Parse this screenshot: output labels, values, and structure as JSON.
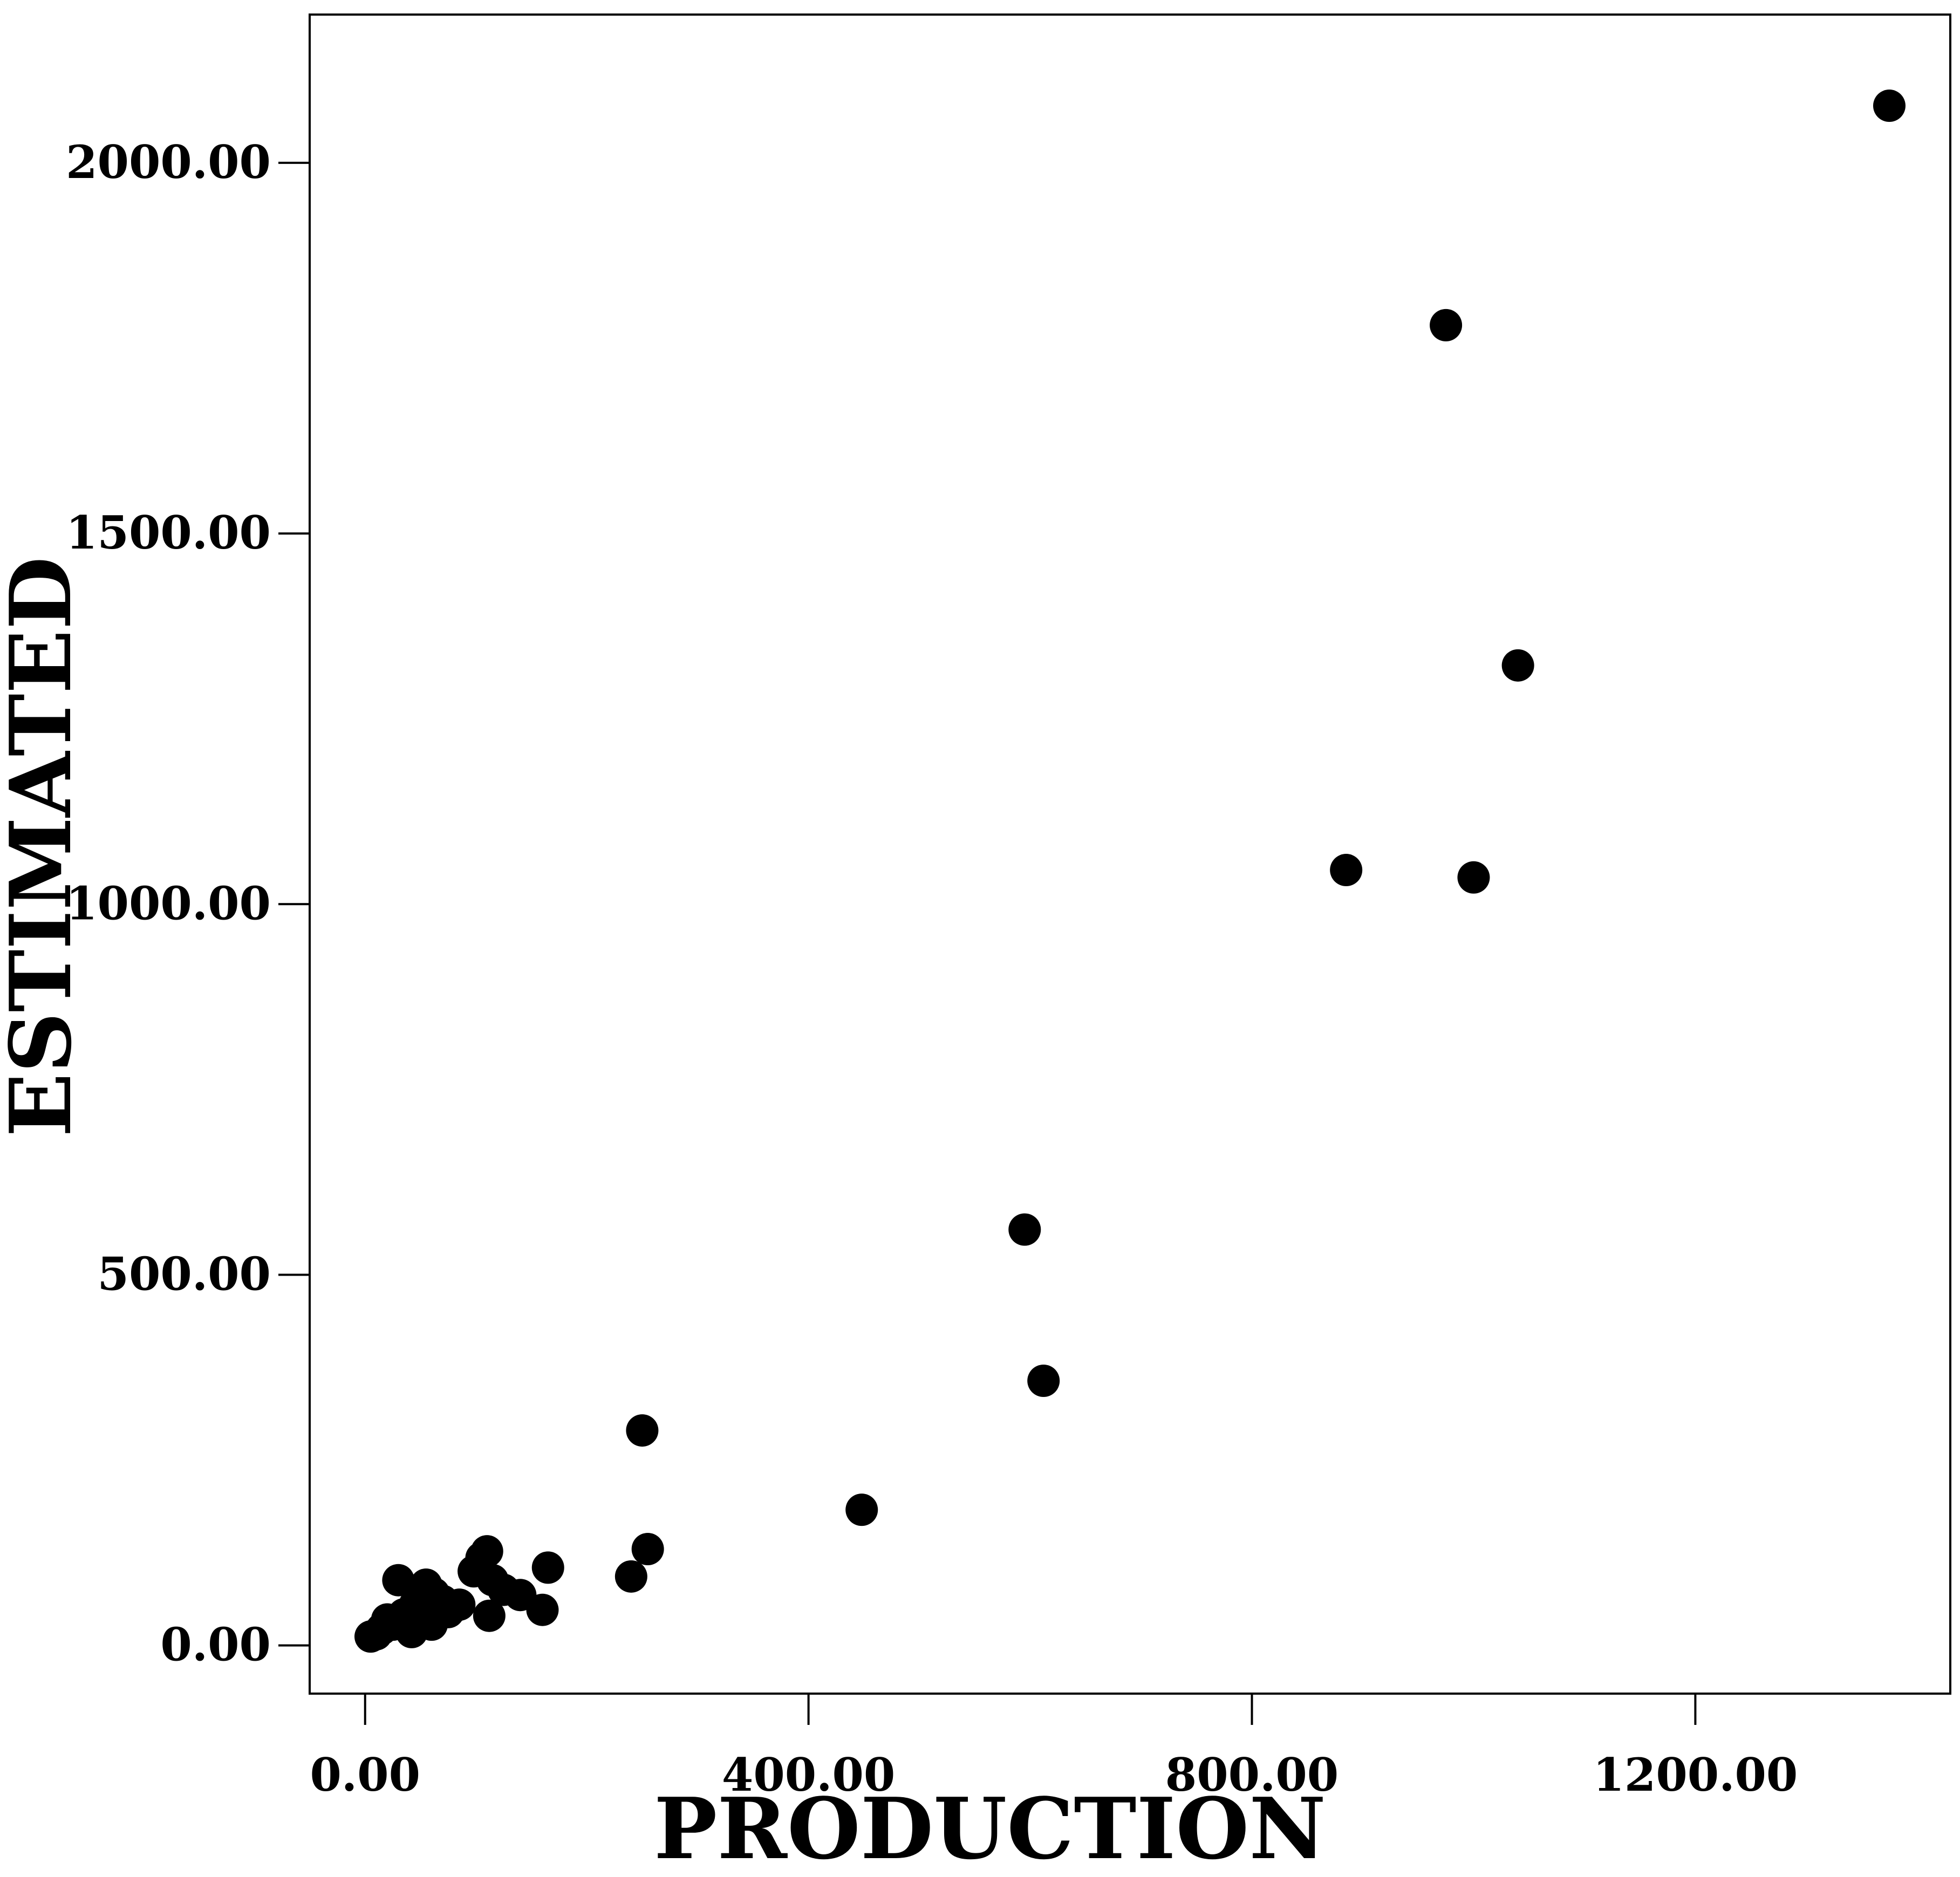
{
  "chart_data": {
    "type": "scatter",
    "title": "",
    "xlabel": "PRODUCTION",
    "ylabel": "ESTIMATED",
    "xlim": [
      -50,
      1430
    ],
    "ylim": [
      -65,
      2200
    ],
    "x_ticks": [
      0,
      400,
      800,
      1200
    ],
    "y_ticks": [
      0,
      500,
      1000,
      1500,
      2000
    ],
    "x_tick_labels": [
      "0.00",
      "400.00",
      "800.00",
      "1200.00"
    ],
    "y_tick_labels": [
      "0.00",
      "500.00",
      "1000.00",
      "1500.00",
      "2000.00"
    ],
    "grid": false,
    "legend": "none",
    "marker_color": "#000000",
    "series": [
      {
        "points": [
          [
            1375,
            2077
          ],
          [
            975,
            1781
          ],
          [
            1040,
            1322
          ],
          [
            885,
            1046
          ],
          [
            1000,
            1036
          ],
          [
            595,
            561
          ],
          [
            612,
            357
          ],
          [
            448,
            183
          ],
          [
            250,
            290
          ],
          [
            255,
            130
          ],
          [
            240,
            93
          ],
          [
            165,
            105
          ],
          [
            160,
            48
          ],
          [
            110,
            127
          ],
          [
            105,
            118
          ],
          [
            98,
            100
          ],
          [
            115,
            88
          ],
          [
            125,
            75
          ],
          [
            140,
            68
          ],
          [
            112,
            40
          ],
          [
            30,
            88
          ],
          [
            55,
            82
          ],
          [
            62,
            70
          ],
          [
            70,
            60
          ],
          [
            80,
            52
          ],
          [
            45,
            55
          ],
          [
            35,
            42
          ],
          [
            50,
            35
          ],
          [
            65,
            40
          ],
          [
            75,
            45
          ],
          [
            20,
            35
          ],
          [
            25,
            28
          ],
          [
            40,
            25
          ],
          [
            42,
            18
          ],
          [
            15,
            22
          ],
          [
            10,
            15
          ],
          [
            5,
            12
          ],
          [
            55,
            48
          ],
          [
            85,
            55
          ],
          [
            60,
            28
          ]
        ]
      }
    ]
  }
}
